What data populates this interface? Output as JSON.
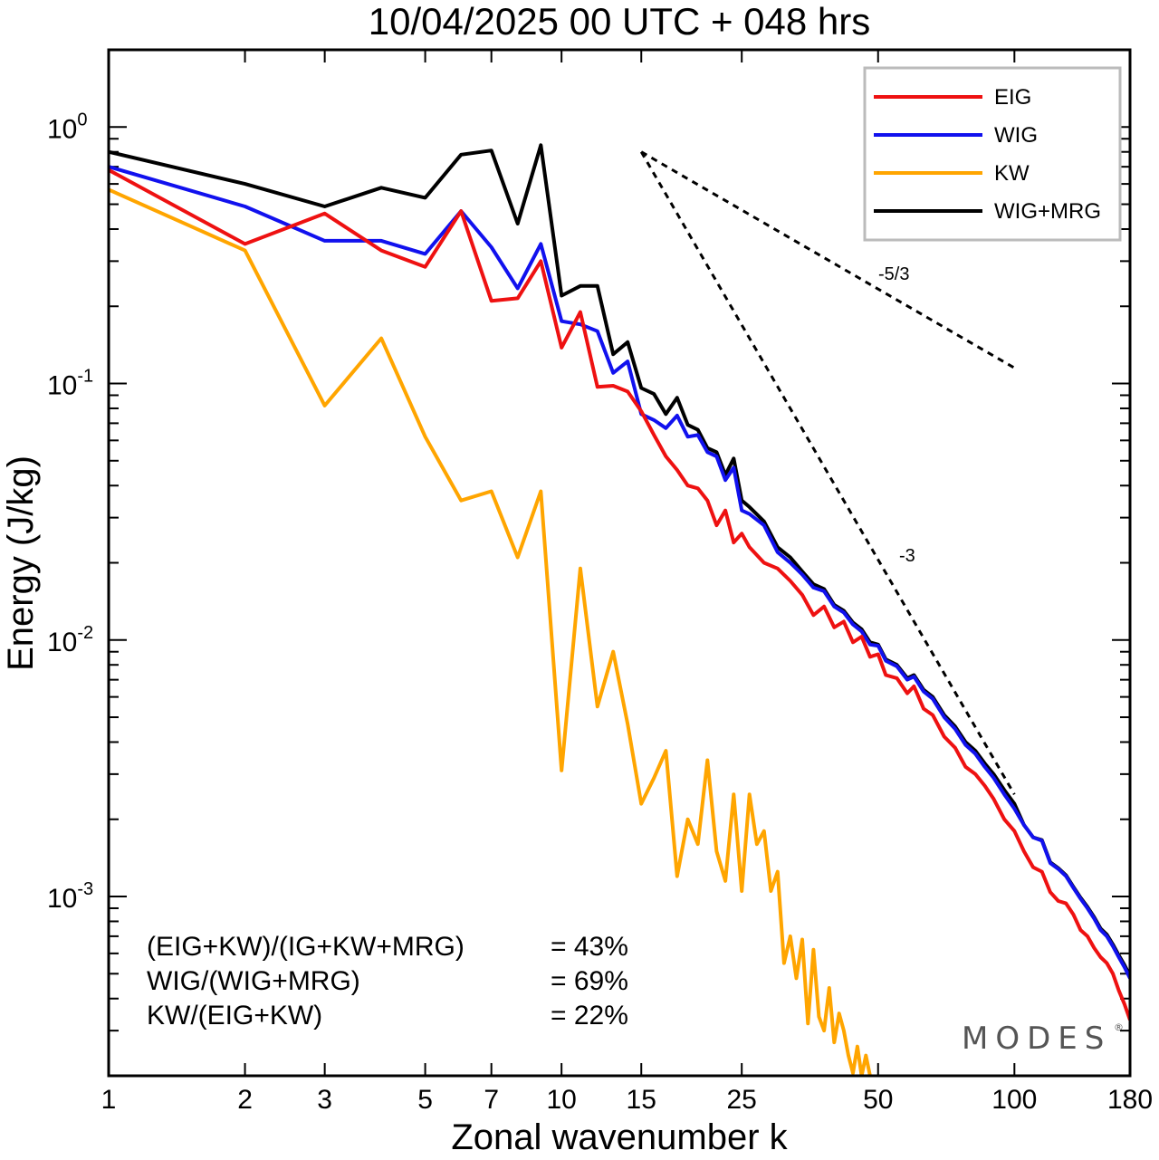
{
  "chart_data": {
    "type": "line",
    "title": "10/04/2025  00 UTC  + 048 hrs",
    "xlabel": "Zonal wavenumber k",
    "ylabel": "Energy (J/kg)",
    "xscale": "log",
    "yscale": "log",
    "xlim": [
      1,
      180
    ],
    "ylim": [
      0.0002,
      2
    ],
    "x_ticks": [
      1,
      2,
      3,
      5,
      7,
      10,
      15,
      25,
      50,
      100,
      180
    ],
    "x_tick_labels": [
      "1",
      "2",
      "3",
      "5",
      "7",
      "10",
      "15",
      "25",
      "50",
      "100",
      "180"
    ],
    "y_ticks": [
      1,
      0.1,
      0.01,
      0.001
    ],
    "y_tick_labels": [
      {
        "base": "10",
        "exp": "0"
      },
      {
        "base": "10",
        "exp": "-1"
      },
      {
        "base": "10",
        "exp": "-2"
      },
      {
        "base": "10",
        "exp": "-3"
      }
    ],
    "legend_position": "top-right",
    "series": [
      {
        "name": "EIG",
        "color": "#ee1111",
        "points": [
          [
            1,
            0.68
          ],
          [
            2,
            0.35
          ],
          [
            3,
            0.46
          ],
          [
            4,
            0.33
          ],
          [
            5,
            0.285
          ],
          [
            6,
            0.47
          ],
          [
            7,
            0.21
          ],
          [
            8,
            0.215
          ],
          [
            9,
            0.3
          ],
          [
            10,
            0.138
          ],
          [
            11,
            0.19
          ],
          [
            12,
            0.097
          ],
          [
            13,
            0.098
          ],
          [
            14,
            0.093
          ],
          [
            15,
            0.078
          ],
          [
            16,
            0.063
          ],
          [
            17,
            0.052
          ],
          [
            18,
            0.046
          ],
          [
            19,
            0.04
          ],
          [
            20,
            0.039
          ],
          [
            21,
            0.035
          ],
          [
            22,
            0.028
          ],
          [
            23,
            0.032
          ],
          [
            24,
            0.024
          ],
          [
            25,
            0.026
          ],
          [
            26,
            0.023
          ],
          [
            28,
            0.02
          ],
          [
            30,
            0.019
          ],
          [
            32,
            0.017
          ],
          [
            34,
            0.015
          ],
          [
            36,
            0.0125
          ],
          [
            38,
            0.0135
          ],
          [
            40,
            0.0112
          ],
          [
            42,
            0.0118
          ],
          [
            44,
            0.0098
          ],
          [
            46,
            0.0103
          ],
          [
            48,
            0.0086
          ],
          [
            50,
            0.0088
          ],
          [
            52,
            0.0073
          ],
          [
            55,
            0.0071
          ],
          [
            58,
            0.0062
          ],
          [
            60,
            0.0066
          ],
          [
            63,
            0.0054
          ],
          [
            66,
            0.0051
          ],
          [
            70,
            0.0042
          ],
          [
            74,
            0.0038
          ],
          [
            78,
            0.0032
          ],
          [
            82,
            0.003
          ],
          [
            86,
            0.0027
          ],
          [
            90,
            0.0024
          ],
          [
            95,
            0.002
          ],
          [
            100,
            0.0018
          ],
          [
            105,
            0.0015
          ],
          [
            110,
            0.0013
          ],
          [
            115,
            0.00125
          ],
          [
            120,
            0.00104
          ],
          [
            125,
            0.00096
          ],
          [
            130,
            0.00094
          ],
          [
            135,
            0.00085
          ],
          [
            140,
            0.00074
          ],
          [
            145,
            0.0007
          ],
          [
            150,
            0.00063
          ],
          [
            155,
            0.00058
          ],
          [
            160,
            0.00055
          ],
          [
            165,
            0.0005
          ],
          [
            170,
            0.00043
          ],
          [
            175,
            0.00038
          ],
          [
            180,
            0.00033
          ]
        ]
      },
      {
        "name": "WIG",
        "color": "#1111ee",
        "points": [
          [
            1,
            0.7
          ],
          [
            2,
            0.49
          ],
          [
            3,
            0.36
          ],
          [
            4,
            0.36
          ],
          [
            5,
            0.32
          ],
          [
            6,
            0.47
          ],
          [
            7,
            0.34
          ],
          [
            8,
            0.235
          ],
          [
            9,
            0.35
          ],
          [
            10,
            0.175
          ],
          [
            11,
            0.17
          ],
          [
            12,
            0.16
          ],
          [
            13,
            0.11
          ],
          [
            14,
            0.122
          ],
          [
            15,
            0.076
          ],
          [
            16,
            0.072
          ],
          [
            17,
            0.067
          ],
          [
            18,
            0.075
          ],
          [
            19,
            0.062
          ],
          [
            20,
            0.063
          ],
          [
            21,
            0.054
          ],
          [
            22,
            0.052
          ],
          [
            23,
            0.042
          ],
          [
            24,
            0.047
          ],
          [
            25,
            0.032
          ],
          [
            26,
            0.031
          ],
          [
            28,
            0.028
          ],
          [
            30,
            0.022
          ],
          [
            32,
            0.02
          ],
          [
            34,
            0.018
          ],
          [
            36,
            0.016
          ],
          [
            38,
            0.0155
          ],
          [
            40,
            0.0135
          ],
          [
            42,
            0.0128
          ],
          [
            44,
            0.0115
          ],
          [
            46,
            0.0108
          ],
          [
            48,
            0.0096
          ],
          [
            50,
            0.0095
          ],
          [
            52,
            0.0083
          ],
          [
            55,
            0.0079
          ],
          [
            58,
            0.007
          ],
          [
            60,
            0.0072
          ],
          [
            63,
            0.0063
          ],
          [
            66,
            0.0059
          ],
          [
            70,
            0.005
          ],
          [
            74,
            0.0045
          ],
          [
            78,
            0.0039
          ],
          [
            82,
            0.0036
          ],
          [
            86,
            0.0032
          ],
          [
            90,
            0.0029
          ],
          [
            95,
            0.0025
          ],
          [
            100,
            0.0022
          ],
          [
            105,
            0.0019
          ],
          [
            110,
            0.0017
          ],
          [
            115,
            0.00165
          ],
          [
            120,
            0.00135
          ],
          [
            125,
            0.00128
          ],
          [
            130,
            0.0012
          ],
          [
            135,
            0.00108
          ],
          [
            140,
            0.00098
          ],
          [
            145,
            0.0009
          ],
          [
            150,
            0.00082
          ],
          [
            155,
            0.00074
          ],
          [
            160,
            0.0007
          ],
          [
            165,
            0.00064
          ],
          [
            170,
            0.00058
          ],
          [
            175,
            0.00053
          ],
          [
            180,
            0.00048
          ]
        ]
      },
      {
        "name": "KW",
        "color": "#ffa500",
        "points": [
          [
            1,
            0.57
          ],
          [
            2,
            0.33
          ],
          [
            3,
            0.082
          ],
          [
            4,
            0.15
          ],
          [
            5,
            0.062
          ],
          [
            6,
            0.035
          ],
          [
            7,
            0.038
          ],
          [
            8,
            0.021
          ],
          [
            9,
            0.038
          ],
          [
            10,
            0.0031
          ],
          [
            11,
            0.019
          ],
          [
            12,
            0.0055
          ],
          [
            13,
            0.009
          ],
          [
            14,
            0.0047
          ],
          [
            15,
            0.0023
          ],
          [
            16,
            0.0029
          ],
          [
            17,
            0.0037
          ],
          [
            18,
            0.0012
          ],
          [
            19,
            0.002
          ],
          [
            20,
            0.0016
          ],
          [
            21,
            0.0034
          ],
          [
            22,
            0.0015
          ],
          [
            23,
            0.00115
          ],
          [
            24,
            0.0025
          ],
          [
            25,
            0.00105
          ],
          [
            26,
            0.0025
          ],
          [
            27,
            0.0016
          ],
          [
            28,
            0.0018
          ],
          [
            29,
            0.00105
          ],
          [
            30,
            0.00125
          ],
          [
            31,
            0.00055
          ],
          [
            32,
            0.0007
          ],
          [
            33,
            0.00048
          ],
          [
            34,
            0.00068
          ],
          [
            35,
            0.00032
          ],
          [
            36,
            0.00062
          ],
          [
            37,
            0.00034
          ],
          [
            38,
            0.0003
          ],
          [
            39,
            0.00044
          ],
          [
            40,
            0.00027
          ],
          [
            41,
            0.00035
          ],
          [
            42,
            0.0003
          ],
          [
            43,
            0.00024
          ],
          [
            44,
            0.000205
          ],
          [
            45,
            0.00026
          ],
          [
            46,
            0.0002
          ],
          [
            47,
            0.00024
          ],
          [
            48,
            0.0002
          ]
        ]
      },
      {
        "name": "WIG+MRG",
        "color": "#000000",
        "points": [
          [
            1,
            0.8
          ],
          [
            2,
            0.6
          ],
          [
            3,
            0.49
          ],
          [
            4,
            0.58
          ],
          [
            5,
            0.53
          ],
          [
            6,
            0.78
          ],
          [
            7,
            0.81
          ],
          [
            8,
            0.42
          ],
          [
            9,
            0.85
          ],
          [
            10,
            0.22
          ],
          [
            11,
            0.24
          ],
          [
            12,
            0.24
          ],
          [
            13,
            0.13
          ],
          [
            14,
            0.145
          ],
          [
            15,
            0.096
          ],
          [
            16,
            0.091
          ],
          [
            17,
            0.076
          ],
          [
            18,
            0.088
          ],
          [
            19,
            0.069
          ],
          [
            20,
            0.066
          ],
          [
            21,
            0.056
          ],
          [
            22,
            0.054
          ],
          [
            23,
            0.044
          ],
          [
            24,
            0.051
          ],
          [
            25,
            0.035
          ],
          [
            26,
            0.033
          ],
          [
            28,
            0.029
          ],
          [
            30,
            0.023
          ],
          [
            32,
            0.021
          ],
          [
            34,
            0.0185
          ],
          [
            36,
            0.0165
          ],
          [
            38,
            0.0158
          ],
          [
            40,
            0.0137
          ],
          [
            42,
            0.013
          ],
          [
            44,
            0.0117
          ],
          [
            46,
            0.011
          ],
          [
            48,
            0.0098
          ],
          [
            50,
            0.0096
          ],
          [
            52,
            0.0084
          ],
          [
            55,
            0.008
          ],
          [
            58,
            0.0071
          ],
          [
            60,
            0.0073
          ],
          [
            63,
            0.0064
          ],
          [
            66,
            0.006
          ],
          [
            70,
            0.0051
          ],
          [
            74,
            0.0046
          ],
          [
            78,
            0.004
          ],
          [
            82,
            0.0037
          ],
          [
            86,
            0.0033
          ],
          [
            90,
            0.003
          ],
          [
            95,
            0.0026
          ],
          [
            100,
            0.0023
          ],
          [
            105,
            0.0019
          ],
          [
            110,
            0.0017
          ],
          [
            115,
            0.00166
          ],
          [
            120,
            0.00136
          ],
          [
            125,
            0.00129
          ],
          [
            130,
            0.00121
          ],
          [
            135,
            0.00109
          ],
          [
            140,
            0.00099
          ],
          [
            145,
            0.00091
          ],
          [
            150,
            0.00083
          ],
          [
            155,
            0.00075
          ],
          [
            160,
            0.00071
          ],
          [
            165,
            0.00065
          ],
          [
            170,
            0.00059
          ],
          [
            175,
            0.00054
          ],
          [
            180,
            0.00049
          ]
        ]
      }
    ],
    "reference_lines": [
      {
        "label": "-5/3",
        "from": [
          15,
          0.8
        ],
        "to": [
          100,
          0.115
        ]
      },
      {
        "label": "-3",
        "from": [
          15,
          0.8
        ],
        "to": [
          100,
          0.0025
        ]
      }
    ],
    "ratios": [
      {
        "label": "(EIG+KW)/(IG+KW+MRG)",
        "value": "= 43%"
      },
      {
        "label": "WIG/(WIG+MRG)",
        "value": "= 69%"
      },
      {
        "label": "KW/(EIG+KW)",
        "value": "= 22%"
      }
    ],
    "watermark": "MODES",
    "watermark_mark": "®"
  }
}
